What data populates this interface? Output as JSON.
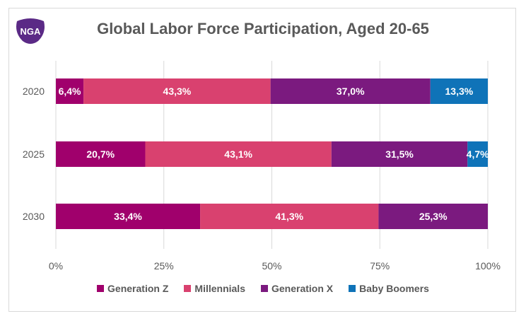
{
  "logo": {
    "text": "NGA",
    "color": "#5b2a86"
  },
  "chart_data": {
    "type": "bar",
    "orientation": "horizontal",
    "stacked": true,
    "percent_stacked": true,
    "title": "Global Labor Force Participation, Aged 20-65",
    "categories": [
      "2020",
      "2025",
      "2030"
    ],
    "series": [
      {
        "name": "Generation Z",
        "color": "#a0006c",
        "values": [
          6.4,
          20.7,
          33.4
        ],
        "labels": [
          "6,4%",
          "20,7%",
          "33,4%"
        ]
      },
      {
        "name": "Millennials",
        "color": "#d9416f",
        "values": [
          43.3,
          43.1,
          41.3
        ],
        "labels": [
          "43,3%",
          "43,1%",
          "41,3%"
        ]
      },
      {
        "name": "Generation X",
        "color": "#7b1a7f",
        "values": [
          37.0,
          31.5,
          25.3
        ],
        "labels": [
          "37,0%",
          "31,5%",
          "25,3%"
        ]
      },
      {
        "name": "Baby Boomers",
        "color": "#0f73b8",
        "values": [
          13.3,
          4.7,
          0
        ],
        "labels": [
          "13,3%",
          "4,7%",
          ""
        ]
      }
    ],
    "xlim": [
      0,
      100
    ],
    "xticks": [
      "0%",
      "25%",
      "50%",
      "75%",
      "100%"
    ],
    "grid": true,
    "legend_position": "bottom"
  }
}
